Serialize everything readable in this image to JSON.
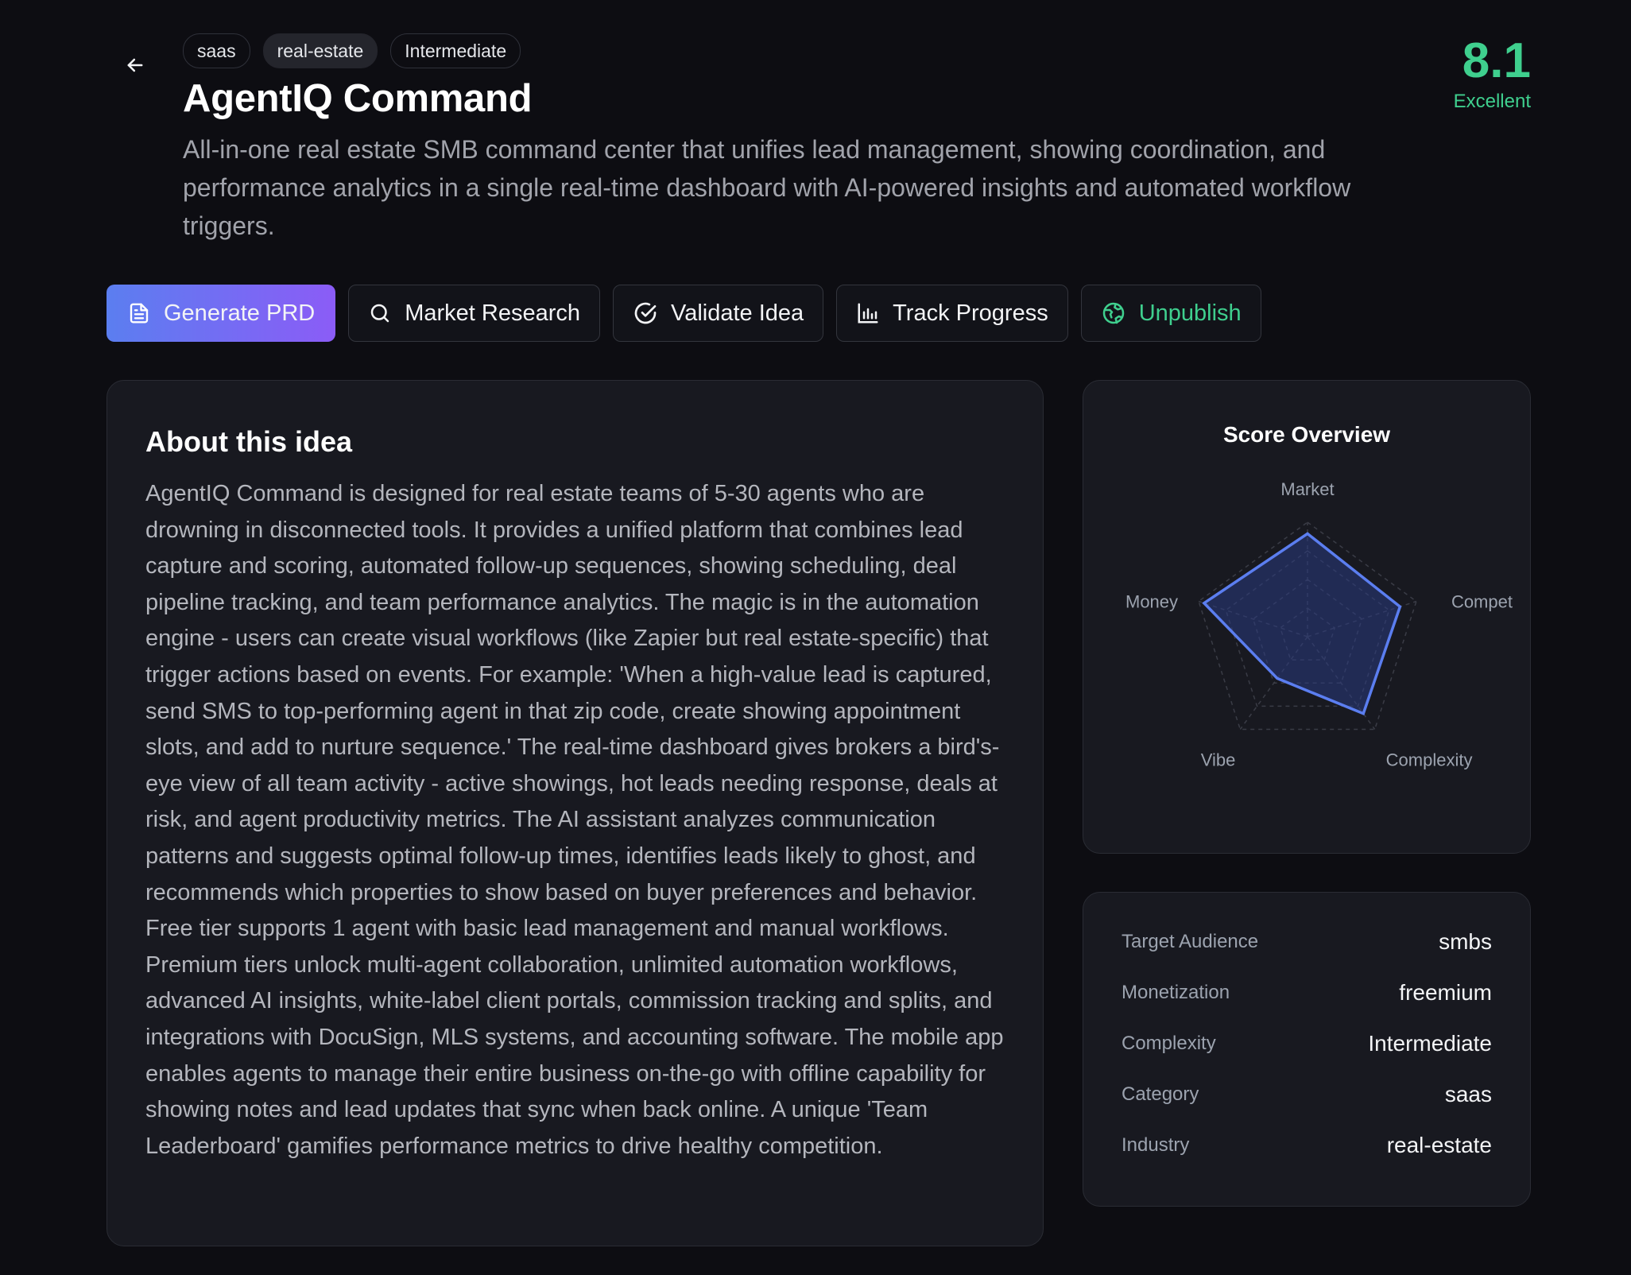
{
  "tags": [
    "saas",
    "real-estate",
    "Intermediate"
  ],
  "title": "AgentIQ Command",
  "description": "All-in-one real estate SMB command center that unifies lead management, showing coordination, and performance analytics in a single real-time dashboard with AI-powered insights and automated workflow triggers.",
  "score": {
    "value": "8.1",
    "label": "Excellent",
    "color": "#3fcf8e"
  },
  "actions": [
    {
      "label": "Generate PRD",
      "icon": "document-icon"
    },
    {
      "label": "Market Research",
      "icon": "search-icon"
    },
    {
      "label": "Validate Idea",
      "icon": "check-circle-icon"
    },
    {
      "label": "Track Progress",
      "icon": "bar-chart-icon"
    },
    {
      "label": "Unpublish",
      "icon": "globe-icon"
    }
  ],
  "about": {
    "heading": "About this idea",
    "body": "AgentIQ Command is designed for real estate teams of 5-30 agents who are drowning in disconnected tools. It provides a unified platform that combines lead capture and scoring, automated follow-up sequences, showing scheduling, deal pipeline tracking, and team performance analytics. The magic is in the automation engine - users can create visual workflows (like Zapier but real estate-specific) that trigger actions based on events. For example: 'When a high-value lead is captured, send SMS to top-performing agent in that zip code, create showing appointment slots, and add to nurture sequence.' The real-time dashboard gives brokers a bird's-eye view of all team activity - active showings, hot leads needing response, deals at risk, and agent productivity metrics. The AI assistant analyzes communication patterns and suggests optimal follow-up times, identifies leads likely to ghost, and recommends which properties to show based on buyer preferences and behavior. Free tier supports 1 agent with basic lead management and manual workflows. Premium tiers unlock multi-agent collaboration, unlimited automation workflows, advanced AI insights, white-label client portals, commission tracking and splits, and integrations with DocuSign, MLS systems, and accounting software. The mobile app enables agents to manage their entire business on-the-go with offline capability for showing notes and lead updates that sync when back online. A unique 'Team Leaderboard' gamifies performance metrics to drive healthy competition."
  },
  "overview": {
    "heading": "Score Overview",
    "chart_data": {
      "type": "radar",
      "axes": [
        "Market",
        "Compet",
        "Complexity",
        "Vibe",
        "Money"
      ],
      "values": [
        9,
        8.5,
        8.3,
        4.5,
        9.5
      ],
      "range": [
        0,
        10
      ],
      "line_color": "#5b7ef0",
      "fill_color": "#2a3a80"
    }
  },
  "meta": [
    {
      "key": "Target Audience",
      "value": "smbs"
    },
    {
      "key": "Monetization",
      "value": "freemium"
    },
    {
      "key": "Complexity",
      "value": "Intermediate"
    },
    {
      "key": "Category",
      "value": "saas"
    },
    {
      "key": "Industry",
      "value": "real-estate"
    }
  ]
}
